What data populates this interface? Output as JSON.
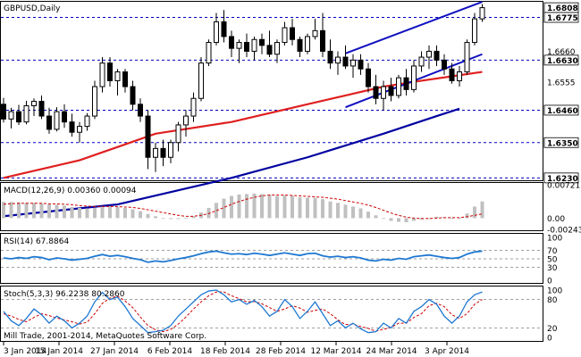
{
  "colors": {
    "bull": "#ffffff",
    "bear": "#000000",
    "ma_fast": "#e02020",
    "ma_slow": "#0000a0",
    "channel": "#1010c0",
    "macd_hist": "#c0c0c0",
    "macd_signal": "#cc0000",
    "rsi_line": "#1e78d2",
    "stoch_main": "#1e78d2",
    "stoch_signal": "#cc0000",
    "guide": "#0000c0",
    "frame": "#000000"
  },
  "chart_data": [
    {
      "type": "candlestick",
      "title": "GBPUSD,Daily",
      "ylim": [
        1.6225,
        1.6825
      ],
      "x_ticks": [
        "3 Jan 2014",
        "15 Jan 2014",
        "27 Jan 2014",
        "6 Feb 2014",
        "18 Feb 2014",
        "28 Feb 2014",
        "12 Mar 2014",
        "24 Mar 2014",
        "3 Apr 2014"
      ],
      "price_labels": [
        {
          "text": "1.6808",
          "value": 1.6808,
          "highlight": true
        },
        {
          "text": "1.6775",
          "value": 1.6775,
          "highlight": true
        },
        {
          "text": "1.6660",
          "value": 1.666,
          "highlight": false
        },
        {
          "text": "1.6630",
          "value": 1.663,
          "highlight": true
        },
        {
          "text": "1.6555",
          "value": 1.6555,
          "highlight": false
        },
        {
          "text": "1.6460",
          "value": 1.646,
          "highlight": true
        },
        {
          "text": "1.6350",
          "value": 1.635,
          "highlight": true
        },
        {
          "text": "1.6230",
          "value": 1.623,
          "highlight": true
        }
      ],
      "horizontal_levels": [
        1.6775,
        1.663,
        1.646,
        1.635,
        1.623
      ],
      "ohlc": [
        [
          1.648,
          1.6502,
          1.6418,
          1.643
        ],
        [
          1.643,
          1.6468,
          1.6398,
          1.6455
        ],
        [
          1.6455,
          1.6478,
          1.641,
          1.642
        ],
        [
          1.642,
          1.6492,
          1.6412,
          1.6475
        ],
        [
          1.6475,
          1.65,
          1.644,
          1.649
        ],
        [
          1.649,
          1.651,
          1.643,
          1.644
        ],
        [
          1.644,
          1.6468,
          1.638,
          1.6395
        ],
        [
          1.6395,
          1.647,
          1.6388,
          1.6455
        ],
        [
          1.6455,
          1.648,
          1.64,
          1.642
        ],
        [
          1.642,
          1.6448,
          1.637,
          1.6385
        ],
        [
          1.6385,
          1.642,
          1.635,
          1.6405
        ],
        [
          1.6405,
          1.645,
          1.639,
          1.644
        ],
        [
          1.644,
          1.656,
          1.643,
          1.654
        ],
        [
          1.654,
          1.664,
          1.652,
          1.662
        ],
        [
          1.662,
          1.664,
          1.654,
          1.656
        ],
        [
          1.656,
          1.66,
          1.651,
          1.659
        ],
        [
          1.659,
          1.66,
          1.652,
          1.654
        ],
        [
          1.654,
          1.656,
          1.646,
          1.648
        ],
        [
          1.648,
          1.65,
          1.642,
          1.644
        ],
        [
          1.644,
          1.646,
          1.626,
          1.63
        ],
        [
          1.63,
          1.635,
          1.625,
          1.633
        ],
        [
          1.633,
          1.636,
          1.627,
          1.63
        ],
        [
          1.63,
          1.636,
          1.628,
          1.635
        ],
        [
          1.635,
          1.642,
          1.632,
          1.641
        ],
        [
          1.641,
          1.646,
          1.637,
          1.644
        ],
        [
          1.644,
          1.652,
          1.642,
          1.65
        ],
        [
          1.65,
          1.664,
          1.649,
          1.662
        ],
        [
          1.662,
          1.67,
          1.661,
          1.669
        ],
        [
          1.669,
          1.679,
          1.668,
          1.676
        ],
        [
          1.676,
          1.68,
          1.669,
          1.671
        ],
        [
          1.671,
          1.673,
          1.664,
          1.667
        ],
        [
          1.667,
          1.67,
          1.662,
          1.669
        ],
        [
          1.669,
          1.672,
          1.664,
          1.666
        ],
        [
          1.666,
          1.671,
          1.663,
          1.67
        ],
        [
          1.67,
          1.672,
          1.665,
          1.668
        ],
        [
          1.668,
          1.673,
          1.664,
          1.665
        ],
        [
          1.665,
          1.67,
          1.662,
          1.669
        ],
        [
          1.669,
          1.676,
          1.668,
          1.674
        ],
        [
          1.674,
          1.677,
          1.668,
          1.67
        ],
        [
          1.67,
          1.671,
          1.664,
          1.666
        ],
        [
          1.666,
          1.672,
          1.665,
          1.671
        ],
        [
          1.671,
          1.677,
          1.67,
          1.673
        ],
        [
          1.673,
          1.679,
          1.664,
          1.666
        ],
        [
          1.666,
          1.67,
          1.66,
          1.662
        ],
        [
          1.662,
          1.666,
          1.658,
          1.664
        ],
        [
          1.664,
          1.668,
          1.66,
          1.661
        ],
        [
          1.661,
          1.665,
          1.657,
          1.663
        ],
        [
          1.663,
          1.665,
          1.658,
          1.66
        ],
        [
          1.66,
          1.662,
          1.652,
          1.654
        ],
        [
          1.654,
          1.658,
          1.648,
          1.65
        ],
        [
          1.65,
          1.656,
          1.646,
          1.654
        ],
        [
          1.654,
          1.657,
          1.649,
          1.651
        ],
        [
          1.651,
          1.658,
          1.65,
          1.657
        ],
        [
          1.657,
          1.66,
          1.651,
          1.653
        ],
        [
          1.653,
          1.663,
          1.652,
          1.661
        ],
        [
          1.661,
          1.666,
          1.659,
          1.664
        ],
        [
          1.664,
          1.668,
          1.66,
          1.666
        ],
        [
          1.666,
          1.668,
          1.661,
          1.663
        ],
        [
          1.663,
          1.665,
          1.658,
          1.66
        ],
        [
          1.66,
          1.662,
          1.655,
          1.656
        ],
        [
          1.656,
          1.661,
          1.654,
          1.659
        ],
        [
          1.659,
          1.67,
          1.658,
          1.669
        ],
        [
          1.669,
          1.679,
          1.668,
          1.677
        ],
        [
          1.677,
          1.682,
          1.676,
          1.6808
        ]
      ],
      "moving_averages": [
        {
          "color": "#e02020",
          "values": [
            [
              0,
              1.623
            ],
            [
              10,
              1.629
            ],
            [
              20,
              1.638
            ],
            [
              30,
              1.642
            ],
            [
              40,
              1.648
            ],
            [
              50,
              1.654
            ],
            [
              55,
              1.656
            ],
            [
              63,
              1.659
            ]
          ]
        },
        {
          "color": "#0000a0",
          "values": [
            [
              0,
              1.61
            ],
            [
              15,
              1.614
            ],
            [
              30,
              1.623
            ],
            [
              40,
              1.63
            ],
            [
              50,
              1.638
            ],
            [
              57,
              1.644
            ],
            [
              60,
              1.6465
            ]
          ]
        }
      ],
      "channel": [
        {
          "from": [
            45,
            1.6653
          ],
          "to": [
            63,
            1.6828
          ]
        },
        {
          "from": [
            45,
            1.647
          ],
          "to": [
            63,
            1.665
          ]
        }
      ]
    },
    {
      "type": "bar",
      "title": "MACD(12,26,9) 0.00360 0.00094",
      "ylim": [
        -0.00243,
        0.00721
      ],
      "tick_labels": [
        {
          "text": "0.00721",
          "value": 0.00721
        },
        {
          "text": "0.00",
          "value": 0.0
        },
        {
          "text": "-0.00243",
          "value": -0.00243
        }
      ],
      "histogram": [
        0.0035,
        0.0035,
        0.0034,
        0.0033,
        0.0033,
        0.0032,
        0.003,
        0.0029,
        0.0027,
        0.0024,
        0.0022,
        0.0021,
        0.0022,
        0.0025,
        0.0025,
        0.0024,
        0.0022,
        0.0019,
        0.0015,
        0.0009,
        0.0004,
        0.0,
        -0.0002,
        -0.0002,
        0.0,
        0.0004,
        0.0012,
        0.0022,
        0.0033,
        0.0042,
        0.0048,
        0.0051,
        0.0052,
        0.0053,
        0.0052,
        0.005,
        0.0048,
        0.0049,
        0.0048,
        0.0045,
        0.0044,
        0.0044,
        0.0041,
        0.0036,
        0.0033,
        0.0029,
        0.0025,
        0.0021,
        0.0014,
        0.0006,
        -0.0001,
        -0.0006,
        -0.0008,
        -0.0009,
        -0.0006,
        -0.0003,
        -0.0001,
        0.0003,
        0.0002,
        0.0,
        0.0001,
        0.001,
        0.0025,
        0.0036
      ],
      "signal": [
        0.003,
        0.0031,
        0.0032,
        0.0032,
        0.0032,
        0.0032,
        0.0031,
        0.0031,
        0.003,
        0.0029,
        0.0027,
        0.0026,
        0.0025,
        0.0025,
        0.0025,
        0.0025,
        0.0024,
        0.0023,
        0.0021,
        0.0018,
        0.0015,
        0.0012,
        0.0009,
        0.0006,
        0.0004,
        0.0004,
        0.0006,
        0.001,
        0.0016,
        0.0023,
        0.003,
        0.0036,
        0.0041,
        0.0045,
        0.0048,
        0.005,
        0.005,
        0.005,
        0.0049,
        0.0048,
        0.0047,
        0.0046,
        0.0045,
        0.0043,
        0.0041,
        0.0038,
        0.0035,
        0.0032,
        0.0028,
        0.0023,
        0.0017,
        0.0011,
        0.0006,
        0.0002,
        0.0,
        -0.0001,
        -0.0001,
        0.0,
        0.0001,
        0.0001,
        0.0001,
        0.0003,
        0.0006,
        0.0009
      ]
    },
    {
      "type": "line",
      "title": "RSI(14) 67.8864",
      "ylim": [
        0,
        100
      ],
      "tick_labels": [
        {
          "text": "100",
          "value": 100
        },
        {
          "text": "70",
          "value": 70
        },
        {
          "text": "50",
          "value": 50
        },
        {
          "text": "30",
          "value": 30
        },
        {
          "text": "0",
          "value": 0
        }
      ],
      "levels": [
        70,
        50,
        30
      ],
      "values": [
        52,
        50,
        53,
        51,
        55,
        53,
        48,
        52,
        50,
        47,
        49,
        51,
        56,
        60,
        56,
        58,
        55,
        51,
        48,
        42,
        45,
        43,
        46,
        50,
        53,
        57,
        62,
        66,
        68,
        64,
        61,
        62,
        60,
        63,
        61,
        58,
        61,
        64,
        61,
        58,
        62,
        63,
        57,
        54,
        56,
        53,
        55,
        52,
        47,
        45,
        49,
        47,
        51,
        49,
        55,
        57,
        59,
        56,
        53,
        51,
        53,
        61,
        66,
        68
      ]
    },
    {
      "type": "line",
      "title": "Stoch(5,3,3) 96.2238 80.2860",
      "ylim": [
        0,
        100
      ],
      "tick_labels": [
        {
          "text": "100",
          "value": 100
        },
        {
          "text": "80",
          "value": 80
        },
        {
          "text": "20",
          "value": 20
        },
        {
          "text": "0",
          "value": 0
        }
      ],
      "levels": [
        80,
        20
      ],
      "series": [
        {
          "values": [
            55,
            35,
            25,
            40,
            60,
            48,
            30,
            45,
            35,
            20,
            30,
            45,
            75,
            95,
            80,
            85,
            65,
            40,
            25,
            10,
            12,
            15,
            25,
            45,
            60,
            75,
            90,
            98,
            100,
            90,
            75,
            80,
            70,
            78,
            65,
            45,
            55,
            80,
            65,
            40,
            55,
            75,
            50,
            25,
            35,
            20,
            30,
            18,
            10,
            12,
            30,
            20,
            40,
            30,
            55,
            65,
            80,
            70,
            45,
            30,
            45,
            75,
            90,
            96
          ]
        },
        {
          "values": [
            50,
            45,
            38,
            33,
            42,
            50,
            46,
            41,
            37,
            33,
            28,
            32,
            50,
            72,
            83,
            87,
            77,
            63,
            43,
            25,
            16,
            12,
            17,
            28,
            43,
            60,
            75,
            88,
            96,
            96,
            88,
            82,
            75,
            76,
            71,
            63,
            55,
            60,
            67,
            62,
            53,
            57,
            60,
            50,
            37,
            27,
            28,
            23,
            19,
            13,
            17,
            21,
            30,
            30,
            42,
            50,
            67,
            72,
            65,
            48,
            40,
            50,
            70,
            80
          ]
        }
      ],
      "watermark": "Mill Trade, 2001-2014, MetaQuotes Software Corp."
    }
  ]
}
